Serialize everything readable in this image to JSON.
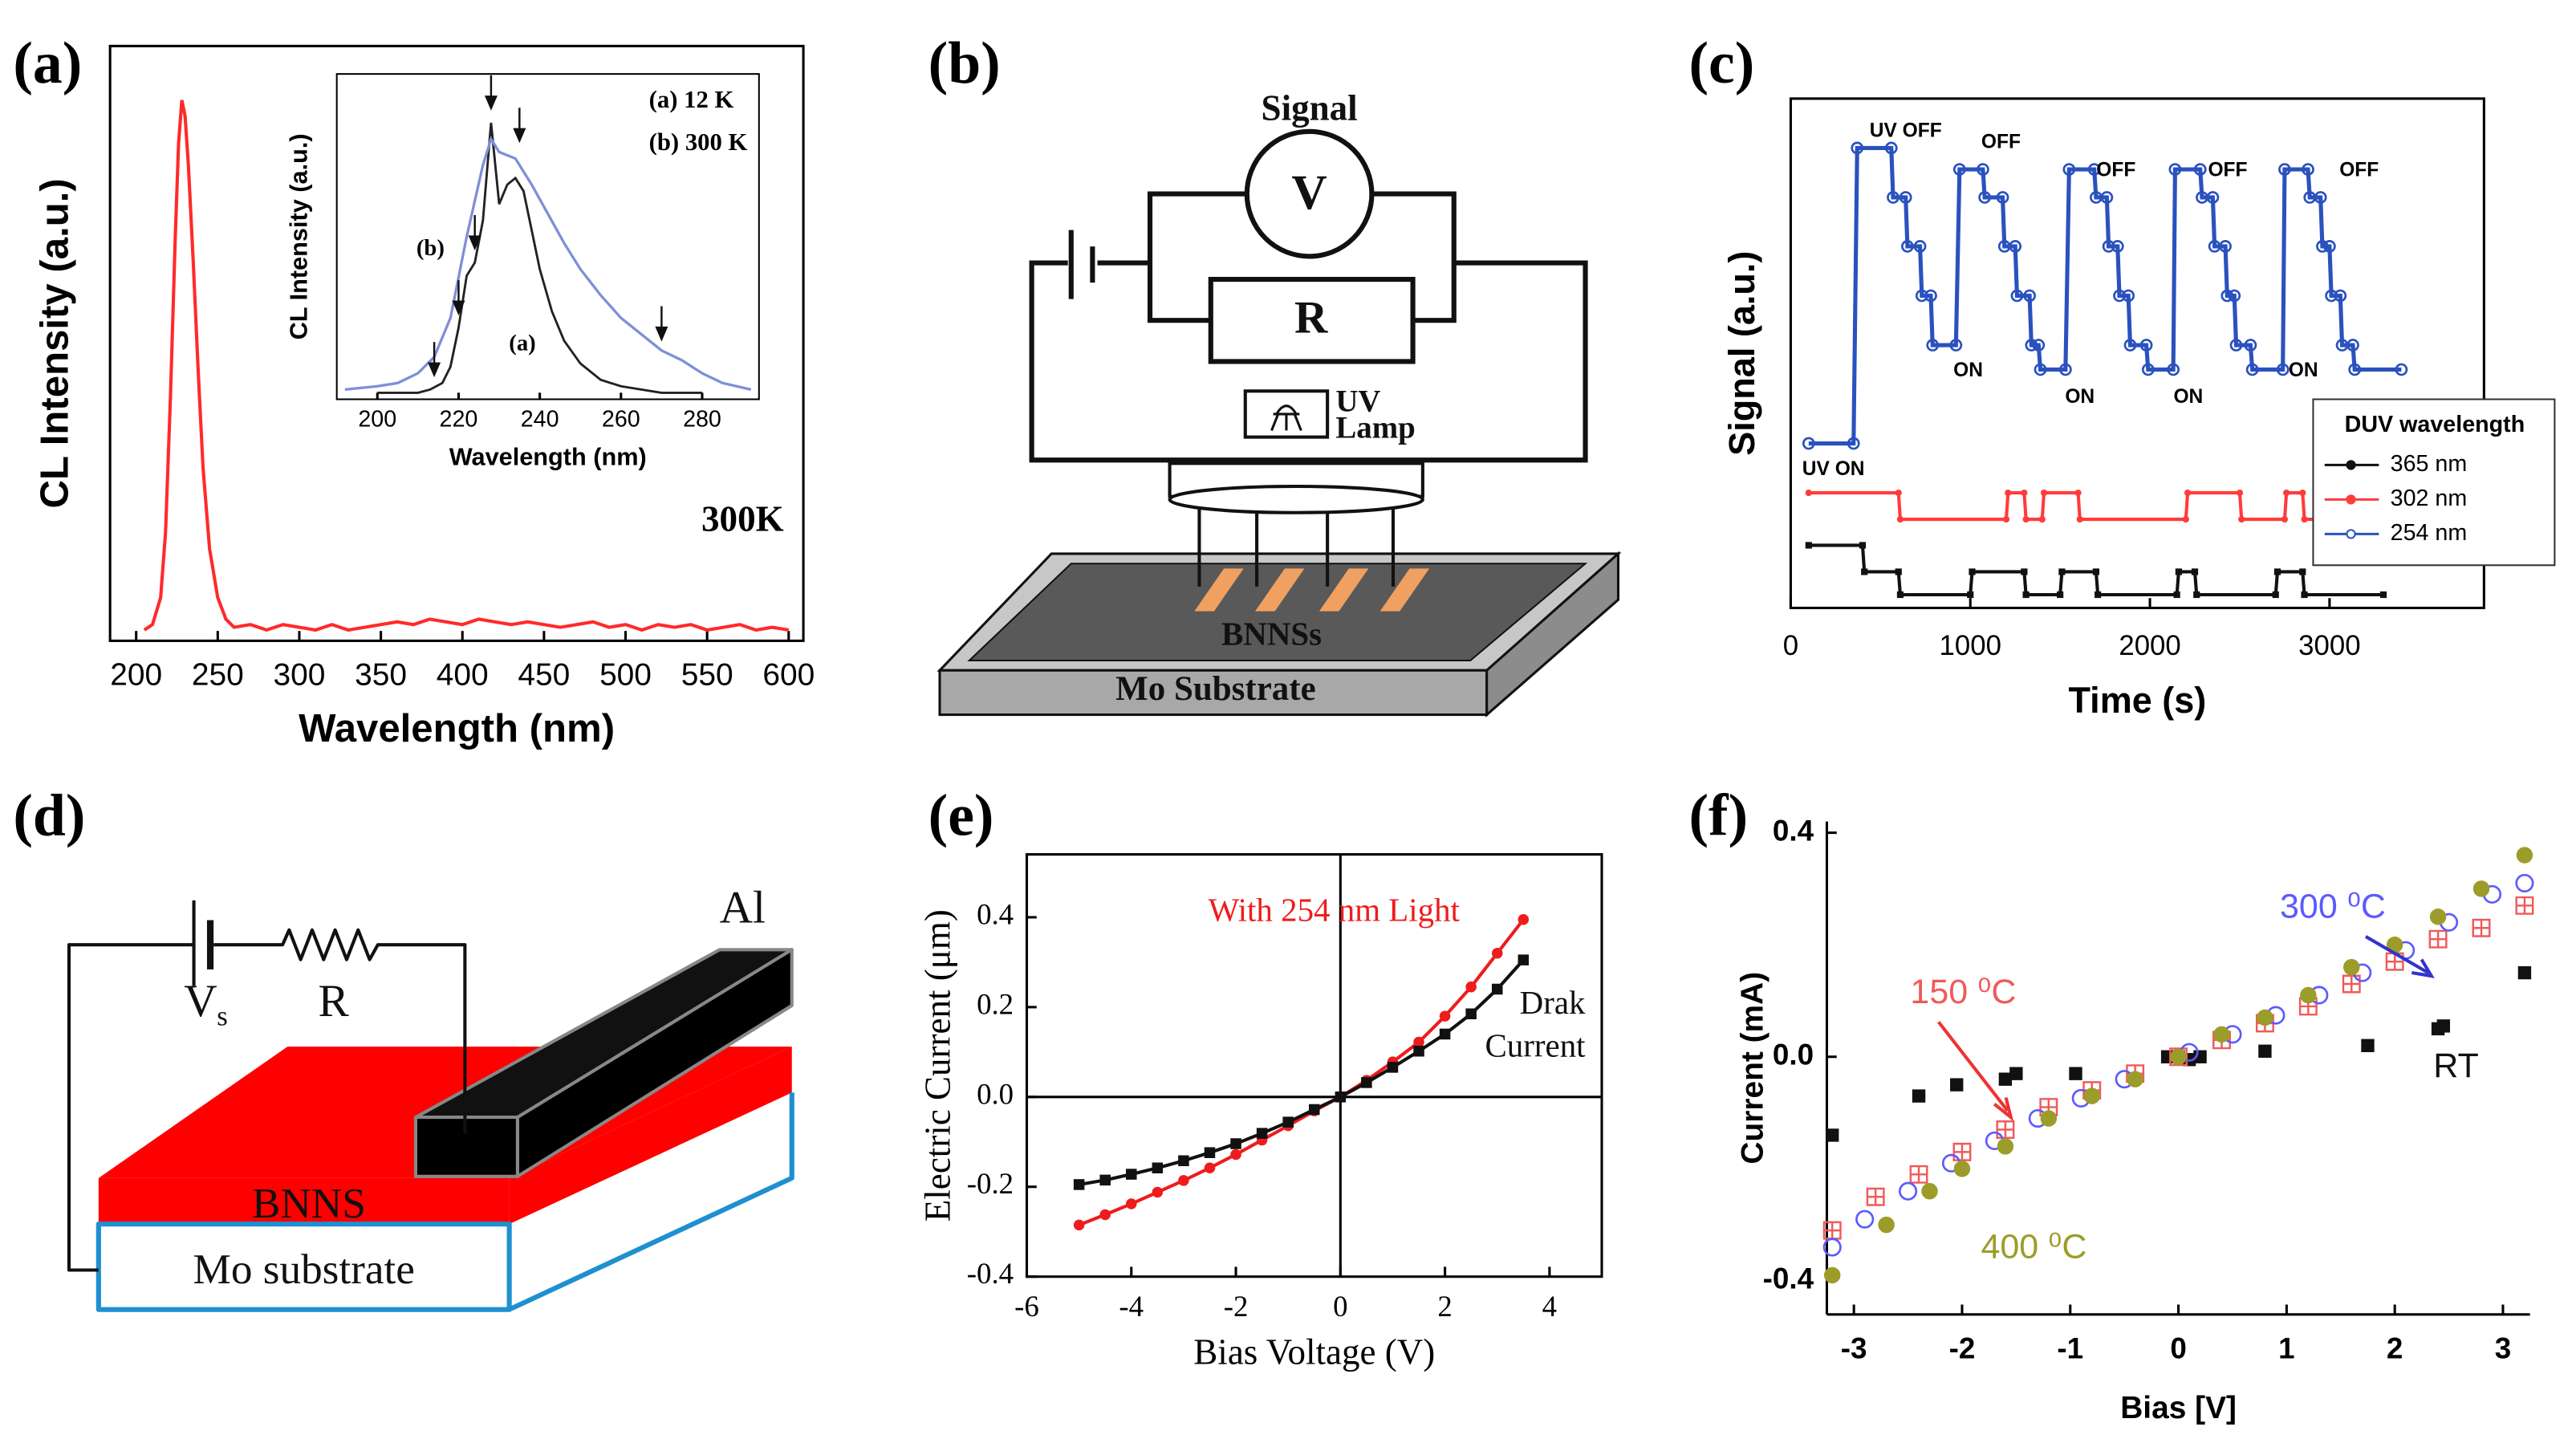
{
  "panels": [
    "(a)",
    "(b)",
    "(c)",
    "(d)",
    "(e)",
    "(f)"
  ],
  "diagram_b": {
    "signal": "Signal",
    "meter": "V",
    "resistor": "R",
    "lamp_1": "UV",
    "lamp_2": "Lamp",
    "film": "BNNSs",
    "substrate": "Mo Substrate"
  },
  "diagram_d": {
    "source": "V",
    "source_sub": "s",
    "resistor": "R",
    "electrode": "Al",
    "film": "BNNS",
    "substrate": "Mo substrate"
  },
  "chart_data": [
    {
      "type": "line",
      "xlabel": "Wavelength (nm)",
      "ylabel": "CL Intensity (a.u.)",
      "annotation": "300K",
      "xlim": [
        184,
        609
      ],
      "ylim": [
        0,
        1.1
      ],
      "xticks": [
        200,
        250,
        300,
        350,
        400,
        450,
        500,
        550,
        600
      ],
      "x": [
        205,
        210,
        215,
        218,
        221,
        224,
        226,
        228,
        230,
        232,
        235,
        238,
        241,
        245,
        250,
        255,
        260,
        270,
        280,
        290,
        300,
        310,
        320,
        330,
        340,
        350,
        360,
        370,
        380,
        390,
        400,
        410,
        420,
        430,
        440,
        450,
        460,
        470,
        480,
        490,
        500,
        510,
        520,
        530,
        540,
        550,
        560,
        570,
        580,
        590,
        600
      ],
      "series": [
        {
          "color": "#ff2a2a",
          "values": [
            0.02,
            0.03,
            0.08,
            0.2,
            0.45,
            0.75,
            0.92,
            1.0,
            0.97,
            0.88,
            0.7,
            0.5,
            0.32,
            0.17,
            0.08,
            0.04,
            0.025,
            0.03,
            0.02,
            0.03,
            0.025,
            0.02,
            0.03,
            0.02,
            0.025,
            0.03,
            0.035,
            0.03,
            0.04,
            0.035,
            0.03,
            0.04,
            0.035,
            0.03,
            0.035,
            0.03,
            0.025,
            0.03,
            0.035,
            0.025,
            0.03,
            0.02,
            0.03,
            0.025,
            0.03,
            0.02,
            0.025,
            0.03,
            0.02,
            0.025,
            0.02
          ]
        }
      ],
      "inset": {
        "type": "line",
        "xlabel": "Wavelength (nm)",
        "ylabel": "CL Intensity (a.u.)",
        "xlim": [
          190,
          294
        ],
        "ylim": [
          0,
          1
        ],
        "xticks": [
          200,
          220,
          240,
          260,
          280
        ],
        "curve_labels": [
          "(a)",
          "(b)"
        ],
        "series": [
          {
            "name": "(a) 12 K",
            "color": "#222222",
            "x": [
              200,
              205,
              210,
              213,
              216,
              218,
              220,
              222,
              224,
              226,
              228,
              230,
              232,
              234,
              236,
              238,
              240,
              243,
              246,
              250,
              255,
              260,
              270,
              280
            ],
            "values": [
              0.02,
              0.02,
              0.02,
              0.03,
              0.05,
              0.1,
              0.22,
              0.38,
              0.42,
              0.55,
              0.85,
              0.6,
              0.66,
              0.68,
              0.64,
              0.52,
              0.4,
              0.27,
              0.18,
              0.11,
              0.06,
              0.04,
              0.02,
              0.02
            ]
          },
          {
            "name": "(b) 300 K",
            "color": "#7e8fd6",
            "x": [
              192,
              200,
              205,
              210,
              214,
              218,
              222,
              226,
              228,
              230,
              234,
              238,
              242,
              246,
              250,
              255,
              260,
              265,
              270,
              275,
              280,
              285,
              292
            ],
            "values": [
              0.03,
              0.04,
              0.05,
              0.08,
              0.13,
              0.25,
              0.5,
              0.72,
              0.8,
              0.76,
              0.74,
              0.66,
              0.57,
              0.48,
              0.4,
              0.32,
              0.25,
              0.2,
              0.15,
              0.12,
              0.08,
              0.05,
              0.03
            ]
          }
        ],
        "arrows": [
          {
            "x": 214,
            "y": 0.06
          },
          {
            "x": 220,
            "y": 0.25
          },
          {
            "x": 224,
            "y": 0.45
          },
          {
            "x": 228,
            "y": 0.88
          },
          {
            "x": 235,
            "y": 0.78
          },
          {
            "x": 270,
            "y": 0.17
          }
        ]
      }
    },
    {
      "type": "line",
      "xlabel": "Time (s)",
      "ylabel": "Signal (a.u.)",
      "legend_title": "DUV wavelength",
      "legend": "lower right",
      "xlim": [
        0,
        3860
      ],
      "ylim": [
        0,
        1
      ],
      "xticks": [
        0,
        1000,
        2000,
        3000
      ],
      "annotations": [
        "UV ON",
        "UV OFF",
        "OFF",
        "OFF",
        "OFF",
        "OFF",
        "ON",
        "ON",
        "ON",
        "ON"
      ],
      "series": [
        {
          "name": "365 nm",
          "color": "#111111",
          "marker": "square",
          "x": [
            100,
            400,
            410,
            600,
            610,
            1000,
            1010,
            1300,
            1310,
            1500,
            1510,
            1700,
            1710,
            2150,
            2160,
            2250,
            2260,
            2700,
            2710,
            2850,
            2860,
            3300
          ],
          "values": [
            0.123,
            0.123,
            0.071,
            0.071,
            0.026,
            0.026,
            0.071,
            0.071,
            0.026,
            0.026,
            0.071,
            0.071,
            0.026,
            0.026,
            0.071,
            0.071,
            0.026,
            0.026,
            0.071,
            0.071,
            0.026,
            0.026
          ]
        },
        {
          "name": "302 nm",
          "color": "#ff3b3b",
          "marker": "dot",
          "x": [
            100,
            600,
            610,
            1200,
            1210,
            1300,
            1310,
            1400,
            1410,
            1600,
            1610,
            2200,
            2210,
            2500,
            2510,
            2750,
            2760,
            2850,
            2860,
            3300
          ],
          "values": [
            0.226,
            0.226,
            0.174,
            0.174,
            0.226,
            0.226,
            0.174,
            0.174,
            0.226,
            0.226,
            0.174,
            0.174,
            0.226,
            0.226,
            0.174,
            0.174,
            0.226,
            0.226,
            0.174,
            0.174
          ]
        },
        {
          "name": "254 nm",
          "color": "#2a52be",
          "marker": "circle",
          "x": [
            100,
            350,
            370,
            560,
            570,
            640,
            650,
            720,
            730,
            780,
            790,
            920,
            940,
            1070,
            1080,
            1180,
            1190,
            1250,
            1260,
            1330,
            1340,
            1380,
            1390,
            1530,
            1550,
            1690,
            1700,
            1760,
            1770,
            1820,
            1830,
            1880,
            1890,
            1980,
            1990,
            2130,
            2140,
            2280,
            2290,
            2350,
            2360,
            2420,
            2430,
            2470,
            2480,
            2560,
            2570,
            2740,
            2750,
            2880,
            2890,
            2950,
            2960,
            3000,
            3010,
            3060,
            3070,
            3130,
            3140,
            3400
          ],
          "values": [
            0.323,
            0.323,
            0.903,
            0.903,
            0.806,
            0.806,
            0.71,
            0.71,
            0.613,
            0.613,
            0.516,
            0.516,
            0.861,
            0.861,
            0.806,
            0.806,
            0.71,
            0.71,
            0.613,
            0.613,
            0.516,
            0.516,
            0.468,
            0.468,
            0.861,
            0.861,
            0.806,
            0.806,
            0.71,
            0.71,
            0.613,
            0.613,
            0.516,
            0.516,
            0.468,
            0.468,
            0.861,
            0.861,
            0.806,
            0.806,
            0.71,
            0.71,
            0.613,
            0.613,
            0.516,
            0.516,
            0.468,
            0.468,
            0.861,
            0.861,
            0.806,
            0.806,
            0.71,
            0.71,
            0.613,
            0.613,
            0.516,
            0.516,
            0.468,
            0.468
          ]
        }
      ]
    },
    {
      "type": "line",
      "xlabel": "Bias Voltage (V)",
      "ylabel": "Electric Current (μm)",
      "xlim": [
        -6,
        5
      ],
      "ylim": [
        -0.4,
        0.54
      ],
      "xticks": [
        -6,
        -4,
        -2,
        0,
        2,
        4
      ],
      "yticks": [
        -0.4,
        -0.2,
        {
          "value": 0,
          "label": "0.0"
        },
        0.2,
        0.4
      ],
      "x": [
        -5,
        -4.5,
        -4,
        -3.5,
        -3,
        -2.5,
        -2,
        -1.5,
        -1,
        -0.5,
        0,
        0.5,
        1,
        1.5,
        2,
        2.5,
        3,
        3.5
      ],
      "series": [
        {
          "name": "With 254 nm Light",
          "color": "#ee1c1c",
          "marker": "circle",
          "values": [
            -0.285,
            -0.262,
            -0.238,
            -0.212,
            -0.186,
            -0.158,
            -0.128,
            -0.096,
            -0.064,
            -0.031,
            0,
            0.037,
            0.078,
            0.122,
            0.18,
            0.245,
            0.32,
            0.395
          ]
        },
        {
          "name": "Drak Current",
          "color": "#111111",
          "marker": "square",
          "values": [
            -0.195,
            -0.185,
            -0.172,
            -0.158,
            -0.142,
            -0.124,
            -0.104,
            -0.081,
            -0.056,
            -0.028,
            0,
            0.032,
            0.066,
            0.102,
            0.14,
            0.185,
            0.24,
            0.305
          ]
        }
      ]
    },
    {
      "type": "scatter",
      "xlabel": "Bias [V]",
      "ylabel": "Current (mA)",
      "xlim": [
        -3.25,
        3.25
      ],
      "ylim": [
        -0.46,
        0.42
      ],
      "xticks": [
        -3,
        -2,
        -1,
        0,
        1,
        2,
        3
      ],
      "yticks": [
        -0.4,
        {
          "value": 0,
          "label": "0.0"
        },
        0.4
      ],
      "series": [
        {
          "name": "RT",
          "color": "#111111",
          "marker": "square",
          "x": [
            -3.2,
            -2.4,
            -2.05,
            -1.6,
            -1.5,
            -0.95,
            -0.1,
            0,
            0.1,
            0.2,
            0.8,
            1.75,
            2.4,
            2.45,
            3.2
          ],
          "values": [
            -0.14,
            -0.07,
            -0.05,
            -0.04,
            -0.03,
            -0.03,
            0,
            0,
            -0.005,
            0,
            0.01,
            0.02,
            0.05,
            0.055,
            0.15
          ]
        },
        {
          "name": "150 ⁰C",
          "color": "#f05a5a",
          "marker": "square-cross",
          "x": [
            -3.2,
            -2.8,
            -2.4,
            -2,
            -1.6,
            -1.2,
            -0.8,
            -0.4,
            0,
            0.4,
            0.8,
            1.2,
            1.6,
            2,
            2.4,
            2.8,
            3.2
          ],
          "values": [
            -0.31,
            -0.25,
            -0.21,
            -0.17,
            -0.13,
            -0.09,
            -0.06,
            -0.03,
            0,
            0.03,
            0.06,
            0.09,
            0.13,
            0.17,
            0.21,
            0.23,
            0.27
          ]
        },
        {
          "name": "300 ⁰C",
          "color": "#5b5bff",
          "marker": "circle-open",
          "x": [
            -3.2,
            -2.9,
            -2.5,
            -2.1,
            -1.7,
            -1.3,
            -0.9,
            -0.5,
            0.1,
            0.5,
            0.9,
            1.3,
            1.7,
            2.1,
            2.5,
            2.9,
            3.2
          ],
          "values": [
            -0.34,
            -0.29,
            -0.24,
            -0.19,
            -0.15,
            -0.11,
            -0.074,
            -0.04,
            0.008,
            0.04,
            0.074,
            0.11,
            0.15,
            0.19,
            0.24,
            0.29,
            0.31
          ]
        },
        {
          "name": "400 ⁰C",
          "color": "#9c9c2a",
          "marker": "circle",
          "x": [
            -3.2,
            -2.7,
            -2.3,
            -2,
            -1.6,
            -1.2,
            -0.8,
            -0.4,
            0,
            0.4,
            0.8,
            1.2,
            1.6,
            2,
            2.4,
            2.8,
            3.2
          ],
          "values": [
            -0.39,
            -0.3,
            -0.24,
            -0.2,
            -0.16,
            -0.11,
            -0.07,
            -0.04,
            0,
            0.04,
            0.07,
            0.11,
            0.16,
            0.2,
            0.25,
            0.3,
            0.36
          ]
        }
      ]
    }
  ]
}
